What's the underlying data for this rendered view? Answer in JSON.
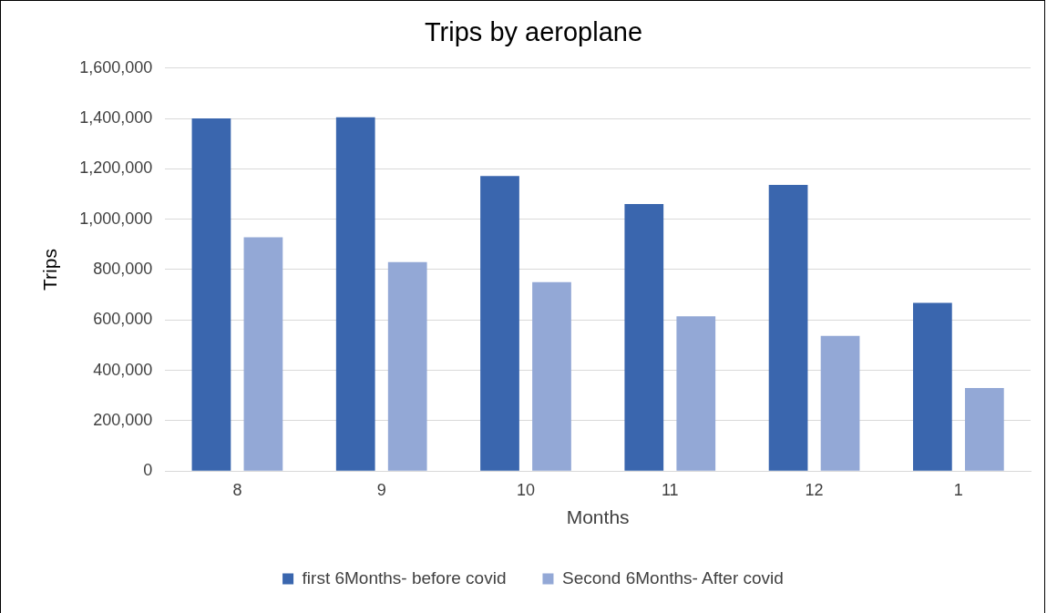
{
  "chart_data": {
    "type": "bar",
    "title": "Trips by aeroplane",
    "xlabel": "Months",
    "ylabel": "Trips",
    "categories": [
      "8",
      "9",
      "10",
      "11",
      "12",
      "1"
    ],
    "series": [
      {
        "name": "first 6Months- before covid",
        "color": "#3a66ae",
        "values": [
          1400000,
          1405000,
          1172000,
          1060000,
          1136000,
          668000
        ]
      },
      {
        "name": "Second 6Months- After covid",
        "color": "#93a8d6",
        "values": [
          928000,
          830000,
          750000,
          615000,
          537000,
          330000
        ]
      }
    ],
    "ylim": [
      0,
      1600000
    ],
    "yticks": [
      {
        "value": 0,
        "label": "0"
      },
      {
        "value": 200000,
        "label": "200,000"
      },
      {
        "value": 400000,
        "label": "400,000"
      },
      {
        "value": 600000,
        "label": "600,000"
      },
      {
        "value": 800000,
        "label": "800,000"
      },
      {
        "value": 1000000,
        "label": "1,000,000"
      },
      {
        "value": 1200000,
        "label": "1,200,000"
      },
      {
        "value": 1400000,
        "label": "1,400,000"
      },
      {
        "value": 1600000,
        "label": "1,600,000"
      }
    ],
    "grid": "y",
    "legend": "bottom"
  }
}
